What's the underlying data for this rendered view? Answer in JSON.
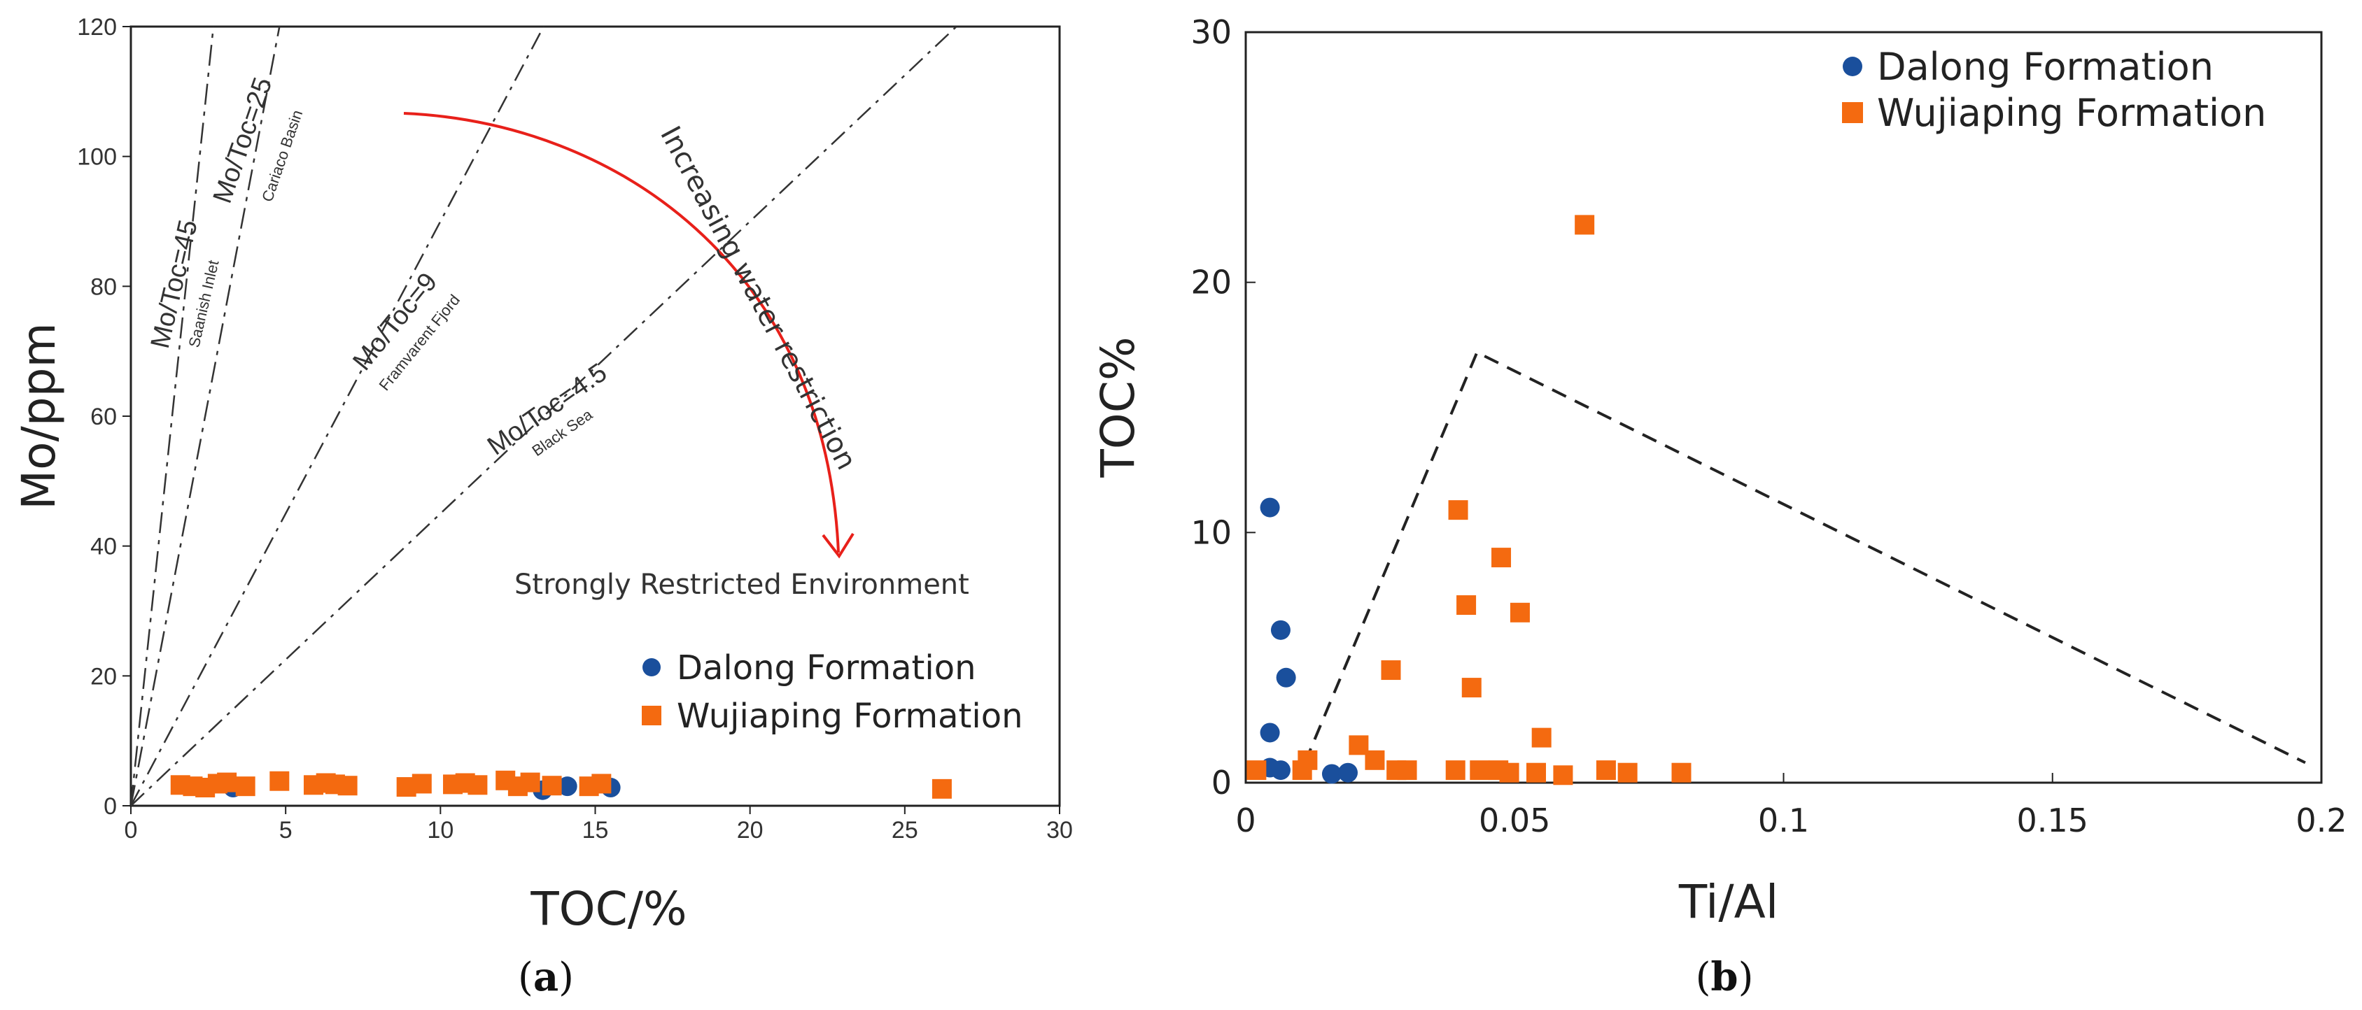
{
  "chart_data": [
    {
      "type": "scatter",
      "panel": "a",
      "caption": [
        "(",
        "a",
        ")"
      ],
      "xlabel": "TOC/%",
      "ylabel": "Mo/ppm",
      "xlim": [
        0,
        30
      ],
      "ylim": [
        0,
        120
      ],
      "xticks": [
        "0",
        "5",
        "10",
        "15",
        "20",
        "25",
        "30"
      ],
      "yticks": [
        "0",
        "20",
        "40",
        "60",
        "80",
        "100",
        "120"
      ],
      "reference_lines": [
        {
          "ratio": 45,
          "label": "Mo/Toc=45",
          "sublabel": "Saanish Inlet"
        },
        {
          "ratio": 25,
          "label": "Mo/Toc=25",
          "sublabel": "Cariaco Basin"
        },
        {
          "ratio": 9,
          "label": "Mo/Toc=9",
          "sublabel": "Framvarent Fjord"
        },
        {
          "ratio": 4.5,
          "label": "Mo/Toc=4.5",
          "sublabel": "Black Sea"
        }
      ],
      "annotations": {
        "arrow_label": "Increasing water restriction",
        "arrow_target": "Strongly Restricted Environment"
      },
      "legend": [
        "Dalong Formation",
        "Wujiaping Formation"
      ],
      "legend_position": "lower-right",
      "colors": {
        "dalong": "#1a4f9c",
        "wujiaping": "#f46a10",
        "arrow": "#e8201a"
      },
      "series": [
        {
          "name": "Dalong Formation",
          "marker": "circle",
          "points": [
            [
              3.3,
              2.8
            ],
            [
              13.3,
              2.4
            ],
            [
              14.1,
              3.0
            ],
            [
              15.5,
              2.8
            ]
          ]
        },
        {
          "name": "Wujiaping Formation",
          "marker": "square",
          "points": [
            [
              1.6,
              3.2
            ],
            [
              2.0,
              3.0
            ],
            [
              2.4,
              2.8
            ],
            [
              2.8,
              3.4
            ],
            [
              3.1,
              3.6
            ],
            [
              3.7,
              3.0
            ],
            [
              4.8,
              3.8
            ],
            [
              5.9,
              3.2
            ],
            [
              6.3,
              3.5
            ],
            [
              6.6,
              3.3
            ],
            [
              7.0,
              3.1
            ],
            [
              8.9,
              2.9
            ],
            [
              9.4,
              3.4
            ],
            [
              10.4,
              3.3
            ],
            [
              10.8,
              3.5
            ],
            [
              11.2,
              3.2
            ],
            [
              12.1,
              3.9
            ],
            [
              12.5,
              3.0
            ],
            [
              12.9,
              3.6
            ],
            [
              13.6,
              3.1
            ],
            [
              14.8,
              3.0
            ],
            [
              15.2,
              3.4
            ],
            [
              26.2,
              2.6
            ]
          ]
        }
      ]
    },
    {
      "type": "scatter",
      "panel": "b",
      "caption": [
        "(",
        "b",
        ")"
      ],
      "xlabel": "Ti/Al",
      "ylabel": "TOC%",
      "xlim": [
        0,
        0.2
      ],
      "ylim": [
        0,
        30
      ],
      "xticks": [
        "0",
        "0.05",
        "0.1",
        "0.15",
        "0.2"
      ],
      "yticks": [
        "0",
        "10",
        "20",
        "30"
      ],
      "envelope": [
        [
          0.011,
          0.8
        ],
        [
          0.043,
          17.2
        ],
        [
          0.197,
          0.8
        ]
      ],
      "legend": [
        "Dalong Formation",
        "Wujiaping Formation"
      ],
      "legend_position": "top-right",
      "colors": {
        "dalong": "#1a4f9c",
        "wujiaping": "#f46a10"
      },
      "series": [
        {
          "name": "Dalong Formation",
          "marker": "circle",
          "points": [
            [
              0.0045,
              11.0
            ],
            [
              0.0065,
              6.1
            ],
            [
              0.0075,
              4.2
            ],
            [
              0.0045,
              2.0
            ],
            [
              0.0045,
              0.6
            ],
            [
              0.0065,
              0.5
            ],
            [
              0.016,
              0.35
            ],
            [
              0.019,
              0.4
            ]
          ]
        },
        {
          "name": "Wujiaping Formation",
          "marker": "square",
          "points": [
            [
              0.002,
              0.5
            ],
            [
              0.0105,
              0.5
            ],
            [
              0.0115,
              0.9
            ],
            [
              0.021,
              1.5
            ],
            [
              0.024,
              0.9
            ],
            [
              0.027,
              4.5
            ],
            [
              0.028,
              0.5
            ],
            [
              0.03,
              0.5
            ],
            [
              0.039,
              0.5
            ],
            [
              0.0395,
              10.9
            ],
            [
              0.041,
              7.1
            ],
            [
              0.042,
              3.8
            ],
            [
              0.0435,
              0.5
            ],
            [
              0.047,
              0.5
            ],
            [
              0.0475,
              9.0
            ],
            [
              0.049,
              0.4
            ],
            [
              0.051,
              6.8
            ],
            [
              0.054,
              0.4
            ],
            [
              0.055,
              1.8
            ],
            [
              0.059,
              0.3
            ],
            [
              0.063,
              22.3
            ],
            [
              0.067,
              0.5
            ],
            [
              0.071,
              0.4
            ],
            [
              0.081,
              0.4
            ]
          ]
        }
      ]
    }
  ]
}
